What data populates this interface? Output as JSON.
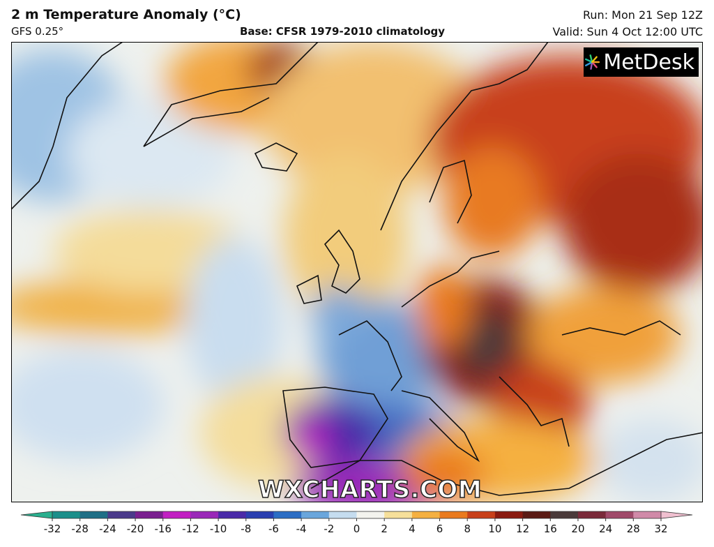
{
  "header": {
    "title": "2 m Temperature Anomaly (°C)",
    "model": "GFS 0.25°",
    "base": "Base: CFSR 1979-2010 climatology",
    "run": "Run: Mon 21 Sep 12Z",
    "valid": "Valid: Sun 4 Oct 12:00 UTC"
  },
  "logo": "MetDesk",
  "watermark": "WXCHARTS.COM",
  "colorbar": {
    "ticks": [
      -32,
      -28,
      -24,
      -20,
      -16,
      -12,
      -10,
      -8,
      -6,
      -4,
      -2,
      0,
      2,
      4,
      6,
      8,
      10,
      12,
      16,
      20,
      24,
      28,
      32
    ],
    "colors": [
      "#2ab08f",
      "#1b8f8a",
      "#1f6f86",
      "#4b3a8a",
      "#7a1f8f",
      "#c21fc2",
      "#9a28b8",
      "#4a2aa8",
      "#2a3fb0",
      "#2c6ec4",
      "#6aa6dc",
      "#c5dcef",
      "#f3f3ee",
      "#f6df9a",
      "#f5b041",
      "#ea7a1e",
      "#c8401a",
      "#8a1a10",
      "#5a1a14",
      "#4a3a3a",
      "#7a2a3a",
      "#a04a6a",
      "#d08aa8",
      "#f0c0d0"
    ]
  }
}
